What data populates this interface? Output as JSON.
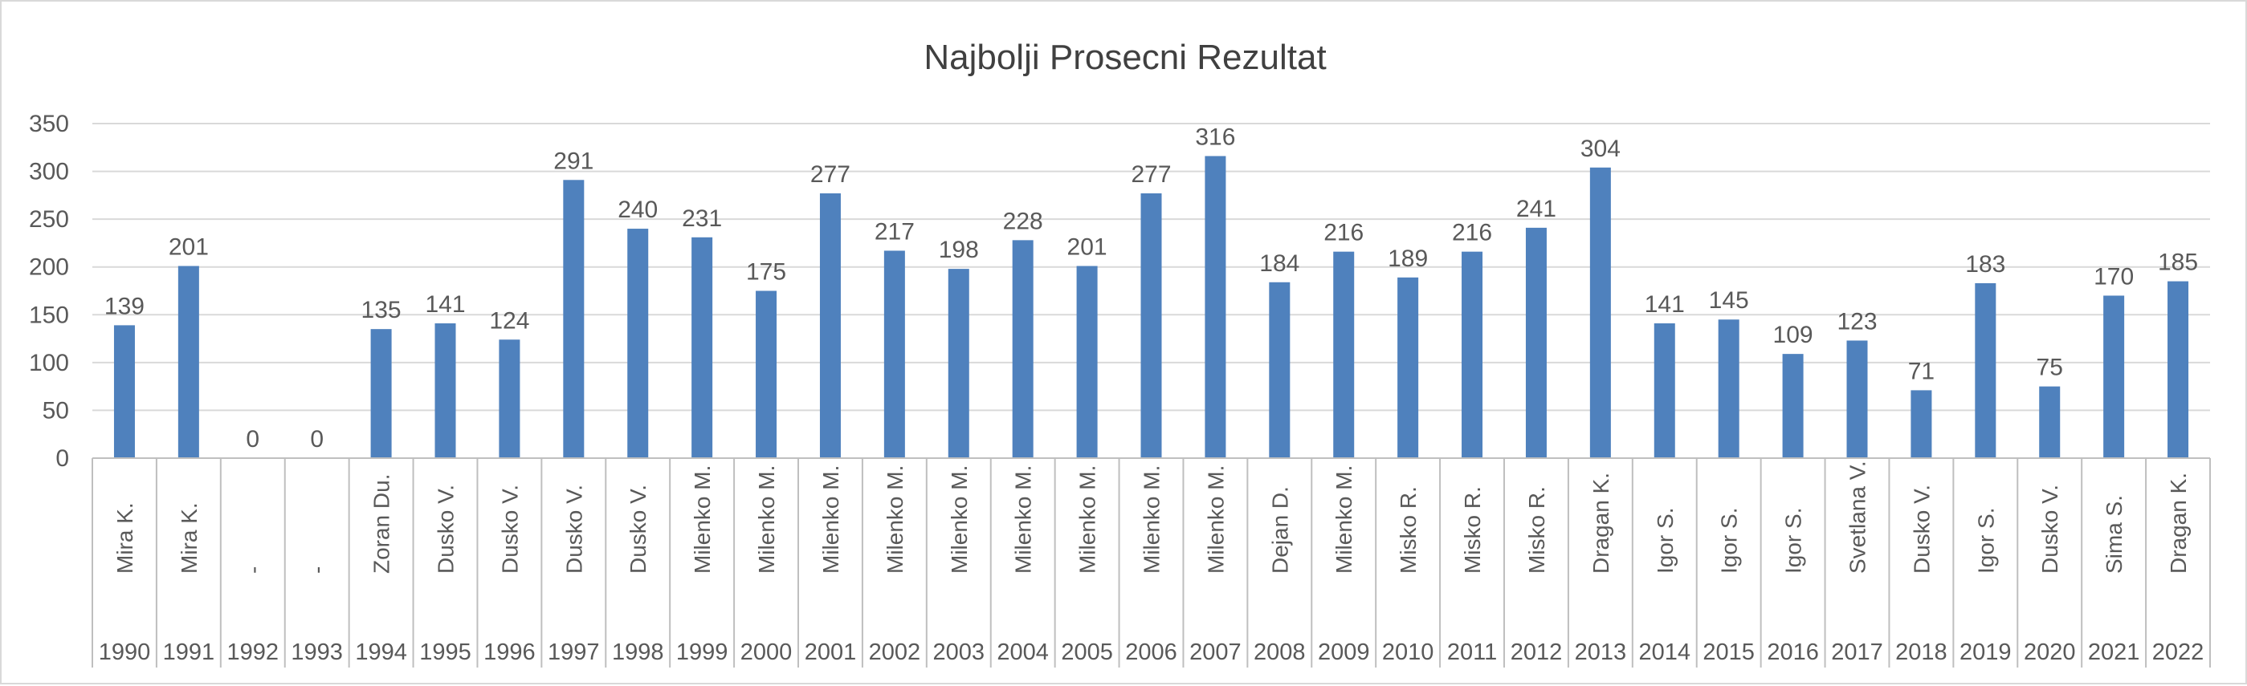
{
  "chart_data": {
    "type": "bar",
    "title": "Najbolji Prosecni Rezultat",
    "xlabel": "",
    "ylabel": "",
    "ylim": [
      0,
      350
    ],
    "yticks": [
      0,
      50,
      100,
      150,
      200,
      250,
      300,
      350
    ],
    "grid": true,
    "legend": "none",
    "categories": [
      {
        "year": "1990",
        "name": "Mira K."
      },
      {
        "year": "1991",
        "name": "Mira K."
      },
      {
        "year": "1992",
        "name": "-"
      },
      {
        "year": "1993",
        "name": "-"
      },
      {
        "year": "1994",
        "name": "Zoran Du."
      },
      {
        "year": "1995",
        "name": "Dusko V."
      },
      {
        "year": "1996",
        "name": "Dusko V."
      },
      {
        "year": "1997",
        "name": "Dusko V."
      },
      {
        "year": "1998",
        "name": "Dusko V."
      },
      {
        "year": "1999",
        "name": "Milenko M."
      },
      {
        "year": "2000",
        "name": "Milenko M."
      },
      {
        "year": "2001",
        "name": "Milenko M."
      },
      {
        "year": "2002",
        "name": "Milenko M."
      },
      {
        "year": "2003",
        "name": "Milenko M."
      },
      {
        "year": "2004",
        "name": "Milenko M."
      },
      {
        "year": "2005",
        "name": "Milenko M."
      },
      {
        "year": "2006",
        "name": "Milenko M."
      },
      {
        "year": "2007",
        "name": "Milenko M."
      },
      {
        "year": "2008",
        "name": "Dejan D."
      },
      {
        "year": "2009",
        "name": "Milenko M."
      },
      {
        "year": "2010",
        "name": "Misko R."
      },
      {
        "year": "2011",
        "name": "Misko R."
      },
      {
        "year": "2012",
        "name": "Misko R."
      },
      {
        "year": "2013",
        "name": "Dragan K."
      },
      {
        "year": "2014",
        "name": "Igor S."
      },
      {
        "year": "2015",
        "name": "Igor S."
      },
      {
        "year": "2016",
        "name": "Igor S."
      },
      {
        "year": "2017",
        "name": "Svetlana V."
      },
      {
        "year": "2018",
        "name": "Dusko V."
      },
      {
        "year": "2019",
        "name": "Igor S."
      },
      {
        "year": "2020",
        "name": "Dusko V."
      },
      {
        "year": "2021",
        "name": "Sima S."
      },
      {
        "year": "2022",
        "name": "Dragan K."
      }
    ],
    "values": [
      139,
      201,
      0,
      0,
      135,
      141,
      124,
      291,
      240,
      231,
      175,
      277,
      217,
      198,
      228,
      201,
      277,
      316,
      184,
      216,
      189,
      216,
      241,
      304,
      141,
      145,
      109,
      123,
      71,
      183,
      75,
      170,
      185
    ],
    "colors": {
      "bar": "#4f81bd",
      "text": "#595959",
      "title": "#404040",
      "grid": "#d9d9d9",
      "axis": "#bfbfbf"
    }
  }
}
